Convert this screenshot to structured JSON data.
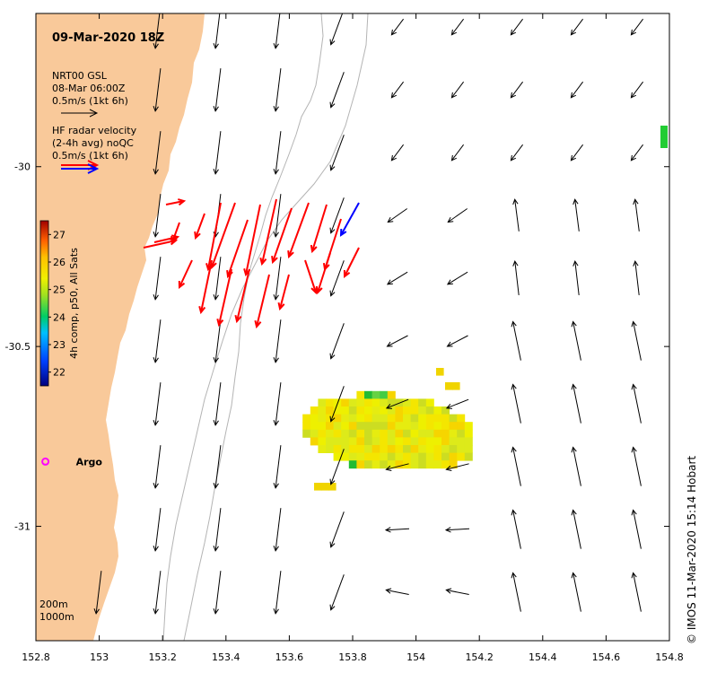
{
  "map": {
    "title": "09-Mar-2020 18Z",
    "lon_range": [
      152.8,
      154.8
    ],
    "lat_range": [
      -31.318,
      -29.574
    ],
    "lon_ticks": [
      "152.8",
      "153",
      "153.2",
      "153.4",
      "153.6",
      "153.8",
      "154",
      "154.2",
      "154.4",
      "154.6",
      "154.8"
    ],
    "lat_ticks": [
      "-30",
      "-30.5",
      "-31"
    ],
    "lon_tick_values": [
      152.8,
      153.0,
      153.2,
      153.4,
      153.6,
      153.8,
      154.0,
      154.2,
      154.4,
      154.6,
      154.8
    ],
    "lat_tick_values": [
      -30.0,
      -30.5,
      -31.0
    ],
    "land_color": "#f9c99a",
    "isobath_color": "#b4b4b4"
  },
  "legend": {
    "model_name": "NRT00 GSL",
    "model_time": "08-Mar 06:00Z",
    "model_scale": "0.5m/s (1kt 6h)",
    "radar_title": "HF radar velocity",
    "radar_subtitle": "(2-4h avg) noQC",
    "radar_scale": "0.5m/s (1kt 6h)",
    "model_arrow_color": "#000000",
    "radar_arrow_color": "#ff0000",
    "radar_arrow_color_alt": "#0000ff"
  },
  "colorbar": {
    "label": "4h comp, p50, All Sats",
    "ticks": [
      "27",
      "26",
      "25",
      "24",
      "23",
      "22"
    ],
    "tick_values": [
      27,
      26,
      25,
      24,
      23,
      22
    ],
    "min": 21.5,
    "max": 27.5
  },
  "argo": {
    "label": "Argo",
    "lon": 152.83,
    "lat": -30.82,
    "color": "#ff00ff"
  },
  "isobaths": {
    "shallow_label": "200m",
    "deep_label": "1000m"
  },
  "credit": "©  IMOS 11-Mar-2020 15:14 Hobart",
  "sst_patch": {
    "units": "degC",
    "typical_value": 25.8
  }
}
